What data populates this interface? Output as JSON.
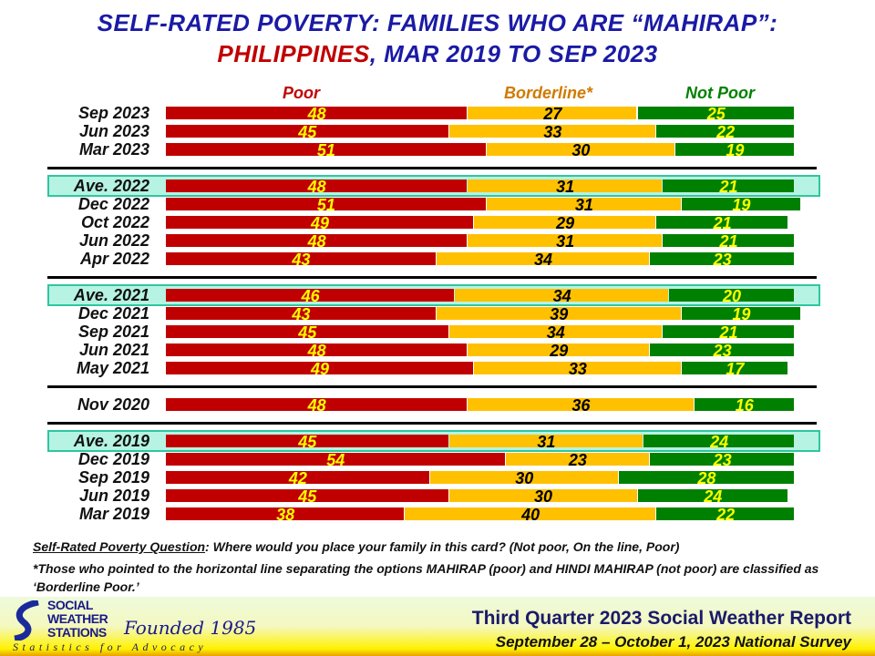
{
  "title": {
    "line1": "SELF-RATED POVERTY: FAMILIES WHO ARE “MAHIRAP”:",
    "line2_country": "PHILIPPINES",
    "line2_rest": ", MAR 2019 TO SEP 2023"
  },
  "chart_data": {
    "type": "bar",
    "orientation": "horizontal",
    "stacked": true,
    "legend": [
      "Poor",
      "Borderline*",
      "Not Poor"
    ],
    "colors": {
      "poor": "#c00000",
      "borderline": "#ffc000",
      "not_poor": "#008000",
      "highlight": "#b6f3e2"
    },
    "groups": [
      {
        "rows": [
          {
            "label": "Sep 2023",
            "values": [
              48,
              27,
              25
            ]
          },
          {
            "label": "Jun 2023",
            "values": [
              45,
              33,
              22
            ]
          },
          {
            "label": "Mar 2023",
            "values": [
              51,
              30,
              19
            ]
          }
        ]
      },
      {
        "rows": [
          {
            "label": "Ave. 2022",
            "values": [
              48,
              31,
              21
            ],
            "average": true
          },
          {
            "label": "Dec 2022",
            "values": [
              51,
              31,
              19
            ]
          },
          {
            "label": "Oct 2022",
            "values": [
              49,
              29,
              21
            ]
          },
          {
            "label": "Jun 2022",
            "values": [
              48,
              31,
              21
            ]
          },
          {
            "label": "Apr 2022",
            "values": [
              43,
              34,
              23
            ]
          }
        ]
      },
      {
        "rows": [
          {
            "label": "Ave. 2021",
            "values": [
              46,
              34,
              20
            ],
            "average": true
          },
          {
            "label": "Dec 2021",
            "values": [
              43,
              39,
              19
            ]
          },
          {
            "label": "Sep 2021",
            "values": [
              45,
              34,
              21
            ]
          },
          {
            "label": "Jun 2021",
            "values": [
              48,
              29,
              23
            ]
          },
          {
            "label": "May 2021",
            "values": [
              49,
              33,
              17
            ]
          }
        ]
      },
      {
        "rows": [
          {
            "label": "Nov 2020",
            "values": [
              48,
              36,
              16
            ]
          }
        ]
      },
      {
        "rows": [
          {
            "label": "Ave. 2019",
            "values": [
              45,
              31,
              24
            ],
            "average": true
          },
          {
            "label": "Dec 2019",
            "values": [
              54,
              23,
              23
            ]
          },
          {
            "label": "Sep 2019",
            "values": [
              42,
              30,
              28
            ]
          },
          {
            "label": "Jun 2019",
            "values": [
              45,
              30,
              24
            ]
          },
          {
            "label": "Mar 2019",
            "values": [
              38,
              40,
              22
            ]
          }
        ]
      }
    ],
    "xlim": [
      0,
      100
    ]
  },
  "notes": {
    "question_label": "Self-Rated Poverty Question",
    "question_text": ":  Where would you place your family in this card?  (Not poor, On the line, Poor)",
    "footnote": "*Those who pointed to the horizontal line separating the options MAHIRAP (poor) and HINDI MAHIRAP (not poor) are classified as ‘Borderline Poor.’"
  },
  "footer": {
    "logo_text": [
      "SOCIAL",
      "WEATHER",
      "STATIONS"
    ],
    "founded": "Founded 1985",
    "tagline": "Statistics for Advocacy",
    "report_title": "Third Quarter 2023 Social Weather Report",
    "survey_dates": "September 28 – October 1, 2023 National Survey"
  }
}
